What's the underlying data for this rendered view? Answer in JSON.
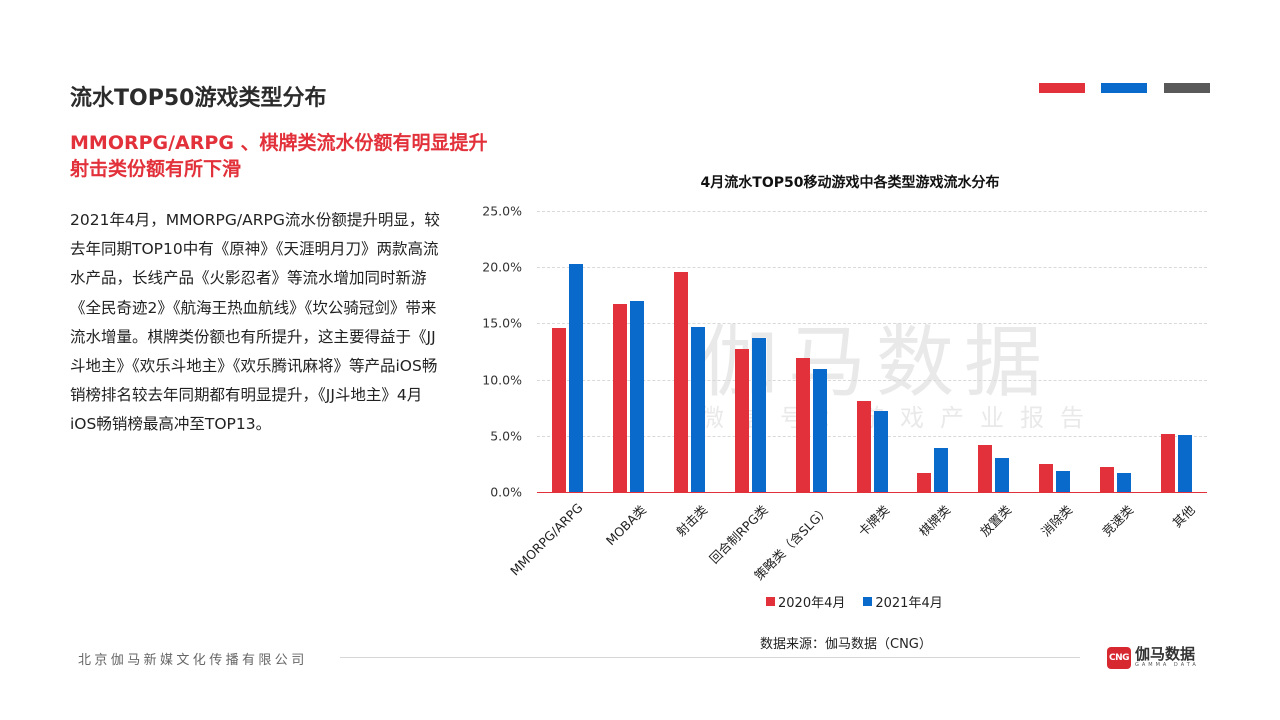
{
  "header": {
    "title": "流水TOP50游戏类型分布",
    "deco_colors": [
      "#e2313a",
      "#0a6acb",
      "#595959"
    ]
  },
  "headline": {
    "line1": "MMORPG/ARPG 、棋牌类流水份额有明显提升",
    "line2": "射击类份额有所下滑"
  },
  "body": {
    "paragraph": "2021年4月，MMORPG/ARPG流水份额提升明显，较去年同期TOP10中有《原神》《天涯明月刀》两款高流水产品，长线产品《火影忍者》等流水增加同时新游《全民奇迹2》《航海王热血航线》《坎公骑冠剑》带来流水增量。棋牌类份额也有所提升，这主要得益于《JJ斗地主》《欢乐斗地主》《欢乐腾讯麻将》等产品iOS畅销榜排名较去年同期都有明显提升，《JJ斗地主》4月iOS畅销榜最高冲至TOP13。"
  },
  "watermark": {
    "main": "伽马数据",
    "sub": "微信号：游戏产业报告"
  },
  "chart_data": {
    "type": "bar",
    "title": "4月流水TOP50移动游戏中各类型游戏流水分布",
    "xlabel": "",
    "ylabel": "",
    "ylim": [
      0,
      25
    ],
    "yticks": [
      "0.0%",
      "5.0%",
      "10.0%",
      "15.0%",
      "20.0%",
      "25.0%"
    ],
    "grid": true,
    "legend_position": "bottom",
    "categories": [
      "MMORPG/ARPG",
      "MOBA类",
      "射击类",
      "回合制RPG类",
      "策略类（含SLG）",
      "卡牌类",
      "棋牌类",
      "放置类",
      "消除类",
      "竞速类",
      "其他"
    ],
    "series": [
      {
        "name": "2020年4月",
        "color": "#e2313a",
        "values": [
          14.6,
          16.7,
          19.6,
          12.7,
          11.9,
          8.1,
          1.7,
          4.2,
          2.5,
          2.2,
          5.2
        ]
      },
      {
        "name": "2021年4月",
        "color": "#0a6acb",
        "values": [
          20.3,
          17.0,
          14.7,
          13.7,
          10.9,
          7.2,
          3.9,
          3.0,
          1.9,
          1.7,
          5.1
        ]
      }
    ]
  },
  "source": {
    "text": "数据来源：伽马数据（CNG）"
  },
  "footer": {
    "company": "北京伽马新媒文化传播有限公司",
    "logo_mark": "CNG",
    "logo_cn": "伽马数据",
    "logo_en": "GAMMA DATA"
  }
}
